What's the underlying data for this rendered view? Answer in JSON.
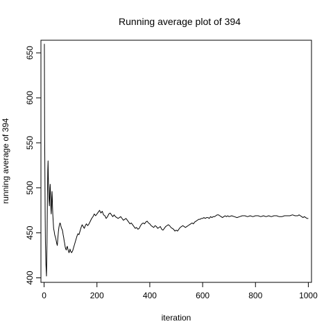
{
  "chart_data": {
    "type": "line",
    "title": "Running average plot of 394",
    "xlabel": "iteration",
    "ylabel": "running average of 394",
    "xlim": [
      -12,
      1012
    ],
    "ylim": [
      395,
      664
    ],
    "xticks": [
      0,
      200,
      400,
      600,
      800,
      1000
    ],
    "yticks": [
      400,
      450,
      500,
      550,
      600,
      650
    ],
    "grid": false,
    "series": [
      {
        "color": "#000000",
        "points": [
          [
            1,
            660
          ],
          [
            2,
            560
          ],
          [
            3,
            520
          ],
          [
            4,
            470
          ],
          [
            5,
            440
          ],
          [
            6,
            425
          ],
          [
            7,
            415
          ],
          [
            8,
            408
          ],
          [
            9,
            402
          ],
          [
            10,
            420
          ],
          [
            11,
            440
          ],
          [
            12,
            470
          ],
          [
            13,
            500
          ],
          [
            14,
            520
          ],
          [
            15,
            530
          ],
          [
            16,
            512
          ],
          [
            17,
            500
          ],
          [
            18,
            492
          ],
          [
            19,
            485
          ],
          [
            20,
            480
          ],
          [
            21,
            488
          ],
          [
            22,
            500
          ],
          [
            23,
            504
          ],
          [
            24,
            495
          ],
          [
            25,
            485
          ],
          [
            26,
            476
          ],
          [
            27,
            471
          ],
          [
            28,
            480
          ],
          [
            29,
            490
          ],
          [
            30,
            496
          ],
          [
            31,
            488
          ],
          [
            32,
            478
          ],
          [
            33,
            470
          ],
          [
            34,
            465
          ],
          [
            35,
            460
          ],
          [
            36,
            455
          ],
          [
            38,
            452
          ],
          [
            40,
            448
          ],
          [
            42,
            446
          ],
          [
            44,
            444
          ],
          [
            46,
            441
          ],
          [
            48,
            438
          ],
          [
            50,
            436
          ],
          [
            52,
            444
          ],
          [
            54,
            451
          ],
          [
            56,
            456
          ],
          [
            58,
            459
          ],
          [
            60,
            461
          ],
          [
            62,
            460
          ],
          [
            64,
            457
          ],
          [
            66,
            455
          ],
          [
            68,
            454
          ],
          [
            70,
            452
          ],
          [
            72,
            448
          ],
          [
            74,
            445
          ],
          [
            76,
            441
          ],
          [
            78,
            438
          ],
          [
            80,
            434
          ],
          [
            82,
            432
          ],
          [
            84,
            431
          ],
          [
            86,
            434
          ],
          [
            88,
            435
          ],
          [
            90,
            432
          ],
          [
            92,
            430
          ],
          [
            94,
            428
          ],
          [
            96,
            429
          ],
          [
            98,
            432
          ],
          [
            100,
            430
          ],
          [
            104,
            428
          ],
          [
            108,
            430
          ],
          [
            112,
            434
          ],
          [
            116,
            438
          ],
          [
            120,
            442
          ],
          [
            124,
            446
          ],
          [
            128,
            449
          ],
          [
            132,
            448
          ],
          [
            136,
            452
          ],
          [
            140,
            456
          ],
          [
            144,
            459
          ],
          [
            148,
            457
          ],
          [
            152,
            455
          ],
          [
            156,
            458
          ],
          [
            160,
            460
          ],
          [
            165,
            458
          ],
          [
            170,
            460
          ],
          [
            175,
            463
          ],
          [
            180,
            466
          ],
          [
            185,
            468
          ],
          [
            190,
            471
          ],
          [
            195,
            469
          ],
          [
            200,
            471
          ],
          [
            205,
            473
          ],
          [
            210,
            475
          ],
          [
            215,
            472
          ],
          [
            220,
            474
          ],
          [
            225,
            470
          ],
          [
            230,
            469
          ],
          [
            235,
            466
          ],
          [
            240,
            468
          ],
          [
            245,
            471
          ],
          [
            250,
            472
          ],
          [
            255,
            470
          ],
          [
            260,
            468
          ],
          [
            265,
            470
          ],
          [
            270,
            468
          ],
          [
            275,
            467
          ],
          [
            280,
            466
          ],
          [
            285,
            467
          ],
          [
            290,
            468
          ],
          [
            295,
            466
          ],
          [
            300,
            464
          ],
          [
            305,
            465
          ],
          [
            310,
            466
          ],
          [
            315,
            464
          ],
          [
            320,
            462
          ],
          [
            325,
            460
          ],
          [
            330,
            461
          ],
          [
            335,
            459
          ],
          [
            340,
            457
          ],
          [
            345,
            455
          ],
          [
            350,
            456
          ],
          [
            355,
            454
          ],
          [
            360,
            455
          ],
          [
            365,
            458
          ],
          [
            370,
            460
          ],
          [
            375,
            461
          ],
          [
            380,
            460
          ],
          [
            385,
            462
          ],
          [
            390,
            463
          ],
          [
            395,
            461
          ],
          [
            400,
            460
          ],
          [
            405,
            458
          ],
          [
            410,
            457
          ],
          [
            415,
            456
          ],
          [
            420,
            458
          ],
          [
            425,
            457
          ],
          [
            430,
            455
          ],
          [
            435,
            456
          ],
          [
            440,
            457
          ],
          [
            445,
            454
          ],
          [
            450,
            453
          ],
          [
            455,
            455
          ],
          [
            460,
            457
          ],
          [
            465,
            458
          ],
          [
            470,
            459
          ],
          [
            475,
            458
          ],
          [
            480,
            456
          ],
          [
            485,
            455
          ],
          [
            490,
            454
          ],
          [
            495,
            452
          ],
          [
            500,
            453
          ],
          [
            505,
            452
          ],
          [
            510,
            454
          ],
          [
            515,
            456
          ],
          [
            520,
            457
          ],
          [
            525,
            458
          ],
          [
            530,
            457
          ],
          [
            535,
            456
          ],
          [
            540,
            457
          ],
          [
            545,
            458
          ],
          [
            550,
            459
          ],
          [
            555,
            460
          ],
          [
            560,
            461
          ],
          [
            565,
            460
          ],
          [
            570,
            462
          ],
          [
            575,
            463
          ],
          [
            580,
            464
          ],
          [
            585,
            465
          ],
          [
            590,
            465
          ],
          [
            595,
            466
          ],
          [
            600,
            466
          ],
          [
            605,
            467
          ],
          [
            610,
            466
          ],
          [
            615,
            467
          ],
          [
            620,
            467
          ],
          [
            625,
            466
          ],
          [
            630,
            468
          ],
          [
            635,
            467
          ],
          [
            640,
            468
          ],
          [
            645,
            468
          ],
          [
            650,
            469
          ],
          [
            655,
            470
          ],
          [
            660,
            470
          ],
          [
            665,
            469
          ],
          [
            670,
            468
          ],
          [
            675,
            467
          ],
          [
            680,
            468
          ],
          [
            685,
            469
          ],
          [
            690,
            468
          ],
          [
            695,
            469
          ],
          [
            700,
            468
          ],
          [
            710,
            469
          ],
          [
            720,
            468
          ],
          [
            730,
            467
          ],
          [
            740,
            468
          ],
          [
            750,
            469
          ],
          [
            760,
            469
          ],
          [
            770,
            468
          ],
          [
            780,
            469
          ],
          [
            790,
            468
          ],
          [
            800,
            469
          ],
          [
            810,
            469
          ],
          [
            820,
            468
          ],
          [
            830,
            469
          ],
          [
            840,
            468
          ],
          [
            850,
            469
          ],
          [
            860,
            468
          ],
          [
            870,
            469
          ],
          [
            880,
            469
          ],
          [
            890,
            468
          ],
          [
            900,
            468
          ],
          [
            910,
            469
          ],
          [
            920,
            469
          ],
          [
            930,
            469
          ],
          [
            940,
            470
          ],
          [
            950,
            469
          ],
          [
            960,
            469
          ],
          [
            965,
            470
          ],
          [
            970,
            469
          ],
          [
            975,
            468
          ],
          [
            980,
            467
          ],
          [
            985,
            468
          ],
          [
            990,
            467
          ],
          [
            995,
            466
          ],
          [
            1000,
            466
          ]
        ]
      }
    ]
  }
}
